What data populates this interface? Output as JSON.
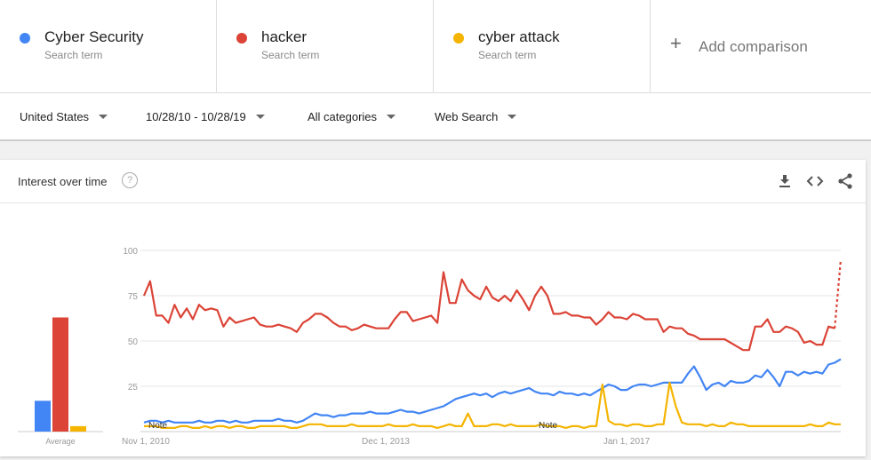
{
  "terms": [
    {
      "name": "Cyber Security",
      "sub": "Search term",
      "color": "#4285f4"
    },
    {
      "name": "hacker",
      "sub": "Search term",
      "color": "#db4437"
    },
    {
      "name": "cyber attack",
      "sub": "Search term",
      "color": "#f4b400"
    }
  ],
  "add_comparison": "Add comparison",
  "filters": {
    "region": "United States",
    "date_range": "10/28/10 - 10/28/19",
    "category": "All categories",
    "search_type": "Web Search"
  },
  "card": {
    "title": "Interest over time",
    "help": "?"
  },
  "chart_data": {
    "type": "line",
    "title": "",
    "yticks": [
      25,
      50,
      75,
      100
    ],
    "ylim": [
      0,
      100
    ],
    "xlabels": [
      "Nov 1, 2010",
      "Dec 1, 2013",
      "Jan 1, 2017"
    ],
    "notes": [
      "Note",
      "Note"
    ],
    "average_label": "Average",
    "averages": [
      {
        "name": "Cyber Security",
        "value": 17,
        "color": "#4285f4"
      },
      {
        "name": "hacker",
        "value": 63,
        "color": "#db4437"
      },
      {
        "name": "cyber attack",
        "value": 3,
        "color": "#f4b400"
      }
    ],
    "series": [
      {
        "name": "hacker",
        "color": "#db4437",
        "partial_last": true,
        "values": [
          75,
          83,
          64,
          64,
          60,
          70,
          63,
          68,
          62,
          70,
          67,
          68,
          67,
          58,
          63,
          60,
          61,
          62,
          63,
          59,
          58,
          58,
          59,
          58,
          57,
          55,
          60,
          62,
          65,
          65,
          63,
          60,
          58,
          58,
          56,
          57,
          59,
          58,
          57,
          57,
          57,
          62,
          66,
          66,
          61,
          62,
          63,
          64,
          60,
          88,
          71,
          71,
          84,
          78,
          75,
          73,
          80,
          74,
          72,
          75,
          72,
          78,
          73,
          67,
          75,
          80,
          75,
          65,
          65,
          66,
          64,
          64,
          63,
          63,
          59,
          62,
          66,
          63,
          63,
          62,
          65,
          64,
          62,
          62,
          62,
          55,
          58,
          57,
          57,
          54,
          53,
          51,
          51,
          51,
          51,
          51,
          49,
          47,
          45,
          45,
          58,
          58,
          62,
          55,
          55,
          58,
          57,
          55,
          49,
          50,
          48,
          48,
          58,
          57,
          95
        ]
      },
      {
        "name": "Cyber Security",
        "color": "#4285f4",
        "values": [
          5,
          6,
          6,
          5,
          6,
          5,
          5,
          5,
          5,
          6,
          5,
          5,
          6,
          6,
          5,
          6,
          5,
          5,
          6,
          6,
          6,
          6,
          7,
          6,
          6,
          5,
          6,
          8,
          10,
          9,
          9,
          8,
          9,
          9,
          10,
          10,
          10,
          11,
          10,
          10,
          10,
          11,
          12,
          11,
          11,
          10,
          11,
          12,
          13,
          14,
          16,
          18,
          19,
          20,
          21,
          20,
          21,
          19,
          21,
          22,
          21,
          22,
          23,
          24,
          22,
          21,
          21,
          20,
          22,
          21,
          21,
          20,
          21,
          20,
          22,
          24,
          26,
          25,
          23,
          23,
          25,
          26,
          26,
          25,
          26,
          27,
          27,
          27,
          27,
          32,
          36,
          30,
          23,
          26,
          27,
          25,
          28,
          27,
          27,
          28,
          31,
          30,
          34,
          30,
          25,
          33,
          33,
          31,
          33,
          32,
          33,
          32,
          37,
          38,
          40
        ]
      },
      {
        "name": "cyber attack",
        "color": "#f4b400",
        "values": [
          3,
          3,
          3,
          2,
          2,
          2,
          3,
          3,
          2,
          2,
          3,
          2,
          3,
          3,
          2,
          3,
          3,
          2,
          2,
          3,
          3,
          3,
          3,
          3,
          2,
          2,
          3,
          4,
          4,
          4,
          3,
          3,
          3,
          3,
          4,
          3,
          3,
          3,
          3,
          3,
          4,
          3,
          3,
          3,
          4,
          3,
          3,
          3,
          2,
          3,
          4,
          3,
          3,
          10,
          3,
          3,
          3,
          4,
          4,
          3,
          4,
          3,
          3,
          3,
          3,
          4,
          3,
          3,
          3,
          2,
          3,
          3,
          2,
          3,
          3,
          26,
          6,
          4,
          4,
          3,
          4,
          4,
          3,
          3,
          4,
          4,
          27,
          14,
          5,
          4,
          4,
          4,
          3,
          4,
          3,
          3,
          5,
          4,
          4,
          3,
          3,
          3,
          3,
          3,
          3,
          3,
          3,
          3,
          3,
          4,
          3,
          3,
          5,
          4,
          4
        ]
      }
    ]
  }
}
